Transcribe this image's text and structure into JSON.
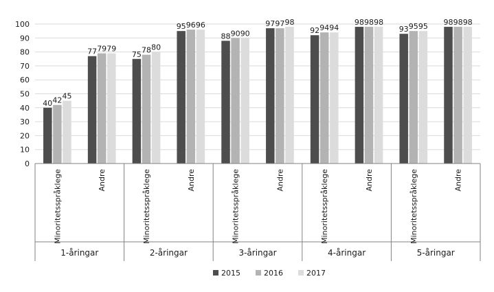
{
  "chart_data": {
    "type": "bar",
    "title": "",
    "xlabel": "",
    "ylabel": "",
    "ylim": [
      0,
      100
    ],
    "yticks": [
      0,
      10,
      20,
      30,
      40,
      50,
      60,
      70,
      80,
      90,
      100
    ],
    "grid": "horizontal",
    "legend": "bottom",
    "groups": [
      "1-åringar",
      "2-åringar",
      "3-åringar",
      "4-åringar",
      "5-åringar"
    ],
    "subcategories": [
      "Minoritetsspråklege",
      "Andre"
    ],
    "categories": [
      "1-åringar Minoritetsspråklege",
      "1-åringar Andre",
      "2-åringar Minoritetsspråklege",
      "2-åringar Andre",
      "3-åringar Minoritetsspråklege",
      "3-åringar Andre",
      "4-åringar Minoritetsspråklege",
      "4-åringar Andre",
      "5-åringar Minoritetsspråklege",
      "5-åringar Andre"
    ],
    "series": [
      {
        "name": "2015",
        "color": "#4d4d4d",
        "values": [
          40,
          77,
          75,
          95,
          88,
          97,
          92,
          98,
          93,
          98
        ]
      },
      {
        "name": "2016",
        "color": "#b3b3b3",
        "values": [
          42,
          79,
          78,
          96,
          90,
          97,
          94,
          98,
          95,
          98
        ]
      },
      {
        "name": "2017",
        "color": "#dcdcdc",
        "values": [
          45,
          79,
          80,
          96,
          90,
          98,
          94,
          98,
          95,
          98
        ]
      }
    ]
  }
}
